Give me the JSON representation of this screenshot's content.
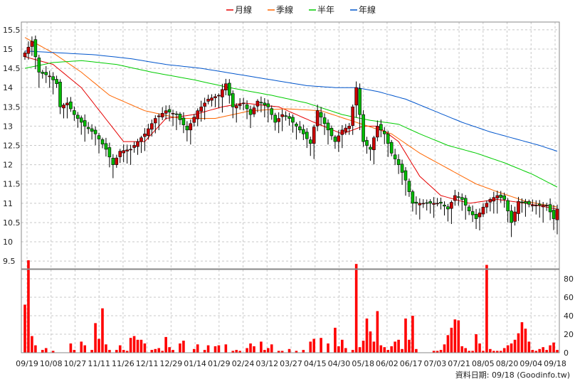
{
  "chart_data": {
    "type": "candlestick",
    "legend": [
      {
        "name": "月線",
        "color": "#e60000"
      },
      {
        "name": "季線",
        "color": "#ff6600"
      },
      {
        "name": "半年",
        "color": "#00cc00"
      },
      {
        "name": "年線",
        "color": "#0055cc"
      }
    ],
    "price_axis": {
      "ticks": [
        "15.5",
        "15",
        "14.5",
        "14",
        "13.5",
        "13",
        "12.5",
        "12",
        "11.5",
        "11",
        "10.5",
        "10",
        "9.5"
      ],
      "ylim": [
        9.3,
        15.7
      ]
    },
    "volume_axis": {
      "ticks": [
        "0",
        "20",
        "40",
        "60",
        "80"
      ],
      "ylim": [
        0,
        90
      ]
    },
    "x_labels": [
      "09/19",
      "10/08",
      "10/27",
      "11/11",
      "11/26",
      "12/11",
      "12/29",
      "01/14",
      "01/29",
      "02/24",
      "03/12",
      "03/27",
      "04/15",
      "04/30",
      "05/18",
      "06/02",
      "06/17",
      "07/03",
      "07/21",
      "08/05",
      "08/20",
      "09/04",
      "09/18"
    ],
    "colors": {
      "up": "#cc0000",
      "down": "#00bb00",
      "volume": "#ff0000",
      "grid": "#c8c8c8"
    },
    "anchors": {
      "close": [
        [
          0,
          14.9
        ],
        [
          2,
          15.2
        ],
        [
          4,
          14.4
        ],
        [
          7,
          14.3
        ],
        [
          9,
          14.1
        ],
        [
          10,
          13.5
        ],
        [
          12,
          13.6
        ],
        [
          14,
          13.3
        ],
        [
          17,
          13.0
        ],
        [
          20,
          12.8
        ],
        [
          23,
          12.4
        ],
        [
          25,
          12.0
        ],
        [
          27,
          12.35
        ],
        [
          30,
          12.4
        ],
        [
          34,
          12.8
        ],
        [
          37,
          13.2
        ],
        [
          40,
          13.4
        ],
        [
          43,
          13.3
        ],
        [
          46,
          12.9
        ],
        [
          49,
          13.4
        ],
        [
          52,
          13.7
        ],
        [
          55,
          13.8
        ],
        [
          57,
          14.1
        ],
        [
          59,
          13.5
        ],
        [
          62,
          13.6
        ],
        [
          64,
          13.3
        ],
        [
          66,
          13.65
        ],
        [
          69,
          13.5
        ],
        [
          71,
          13.1
        ],
        [
          73,
          13.3
        ],
        [
          75,
          13.2
        ],
        [
          77,
          13.0
        ],
        [
          79,
          12.8
        ],
        [
          81,
          12.55
        ],
        [
          83,
          13.4
        ],
        [
          86,
          12.9
        ],
        [
          88,
          12.6
        ],
        [
          90,
          12.9
        ],
        [
          92,
          13.0
        ],
        [
          94,
          14.0
        ],
        [
          96,
          12.6
        ],
        [
          98,
          12.4
        ],
        [
          100,
          13.0
        ],
        [
          102,
          12.8
        ],
        [
          104,
          12.3
        ],
        [
          106,
          12.0
        ],
        [
          108,
          11.6
        ],
        [
          110,
          11.0
        ],
        [
          112,
          11.0
        ],
        [
          114,
          11.0
        ],
        [
          116,
          11.0
        ],
        [
          118,
          11.0
        ],
        [
          120,
          10.85
        ],
        [
          122,
          11.2
        ],
        [
          124,
          11.1
        ],
        [
          126,
          10.8
        ],
        [
          128,
          10.6
        ],
        [
          130,
          10.9
        ],
        [
          132,
          11.1
        ],
        [
          134,
          11.2
        ],
        [
          136,
          11.1
        ],
        [
          138,
          10.5
        ],
        [
          140,
          11.05
        ],
        [
          142,
          11.0
        ],
        [
          144,
          10.95
        ],
        [
          146,
          10.95
        ],
        [
          148,
          10.95
        ],
        [
          150,
          10.6
        ],
        [
          151,
          10.85
        ]
      ],
      "ma_month": [
        [
          0,
          14.8
        ],
        [
          8,
          14.6
        ],
        [
          16,
          14.0
        ],
        [
          22,
          13.3
        ],
        [
          28,
          12.6
        ],
        [
          34,
          12.6
        ],
        [
          40,
          13.2
        ],
        [
          48,
          13.3
        ],
        [
          56,
          13.5
        ],
        [
          62,
          13.6
        ],
        [
          72,
          13.5
        ],
        [
          82,
          13.1
        ],
        [
          90,
          12.8
        ],
        [
          96,
          13.0
        ],
        [
          100,
          13.0
        ],
        [
          106,
          12.6
        ],
        [
          112,
          11.7
        ],
        [
          118,
          11.2
        ],
        [
          126,
          11.0
        ],
        [
          134,
          11.1
        ],
        [
          142,
          11.0
        ],
        [
          151,
          10.85
        ]
      ],
      "ma_quarter": [
        [
          0,
          15.3
        ],
        [
          8,
          14.9
        ],
        [
          16,
          14.4
        ],
        [
          24,
          13.8
        ],
        [
          34,
          13.4
        ],
        [
          44,
          13.2
        ],
        [
          54,
          13.2
        ],
        [
          64,
          13.4
        ],
        [
          74,
          13.45
        ],
        [
          84,
          13.4
        ],
        [
          94,
          13.1
        ],
        [
          104,
          12.8
        ],
        [
          112,
          12.3
        ],
        [
          120,
          11.9
        ],
        [
          128,
          11.5
        ],
        [
          134,
          11.3
        ],
        [
          142,
          11.05
        ],
        [
          151,
          10.9
        ]
      ],
      "ma_half": [
        [
          0,
          14.5
        ],
        [
          8,
          14.65
        ],
        [
          16,
          14.7
        ],
        [
          26,
          14.6
        ],
        [
          36,
          14.4
        ],
        [
          48,
          14.2
        ],
        [
          58,
          14.0
        ],
        [
          70,
          13.8
        ],
        [
          80,
          13.6
        ],
        [
          90,
          13.3
        ],
        [
          98,
          13.15
        ],
        [
          106,
          13.05
        ],
        [
          112,
          12.8
        ],
        [
          120,
          12.5
        ],
        [
          128,
          12.3
        ],
        [
          136,
          12.05
        ],
        [
          144,
          11.75
        ],
        [
          151,
          11.42
        ]
      ],
      "ma_year": [
        [
          0,
          14.95
        ],
        [
          10,
          14.9
        ],
        [
          20,
          14.85
        ],
        [
          30,
          14.75
        ],
        [
          40,
          14.6
        ],
        [
          50,
          14.5
        ],
        [
          60,
          14.35
        ],
        [
          70,
          14.2
        ],
        [
          80,
          14.05
        ],
        [
          88,
          14.0
        ],
        [
          94,
          14.0
        ],
        [
          100,
          13.9
        ],
        [
          108,
          13.7
        ],
        [
          116,
          13.4
        ],
        [
          124,
          13.1
        ],
        [
          132,
          12.85
        ],
        [
          140,
          12.65
        ],
        [
          146,
          12.5
        ],
        [
          151,
          12.35
        ]
      ],
      "volume": [
        [
          0,
          52
        ],
        [
          1,
          100
        ],
        [
          2,
          18
        ],
        [
          3,
          8
        ],
        [
          5,
          3
        ],
        [
          6,
          5
        ],
        [
          8,
          2
        ],
        [
          13,
          10
        ],
        [
          14,
          3
        ],
        [
          16,
          12
        ],
        [
          17,
          8
        ],
        [
          19,
          3
        ],
        [
          20,
          32
        ],
        [
          21,
          15
        ],
        [
          22,
          48
        ],
        [
          23,
          9
        ],
        [
          24,
          3
        ],
        [
          26,
          3
        ],
        [
          27,
          8
        ],
        [
          28,
          3
        ],
        [
          29,
          2
        ],
        [
          30,
          16
        ],
        [
          31,
          18
        ],
        [
          32,
          14
        ],
        [
          33,
          14
        ],
        [
          34,
          10
        ],
        [
          36,
          3
        ],
        [
          37,
          4
        ],
        [
          38,
          5
        ],
        [
          39,
          2
        ],
        [
          40,
          17
        ],
        [
          41,
          6
        ],
        [
          42,
          3
        ],
        [
          44,
          10
        ],
        [
          45,
          13
        ],
        [
          48,
          4
        ],
        [
          49,
          9
        ],
        [
          51,
          3
        ],
        [
          52,
          8
        ],
        [
          54,
          7
        ],
        [
          55,
          8
        ],
        [
          57,
          9
        ],
        [
          59,
          2
        ],
        [
          60,
          3
        ],
        [
          61,
          2
        ],
        [
          63,
          5
        ],
        [
          64,
          10
        ],
        [
          65,
          7
        ],
        [
          67,
          12
        ],
        [
          68,
          3
        ],
        [
          69,
          5
        ],
        [
          70,
          9
        ],
        [
          72,
          2
        ],
        [
          73,
          2
        ],
        [
          75,
          4
        ],
        [
          77,
          2
        ],
        [
          79,
          3
        ],
        [
          81,
          12
        ],
        [
          82,
          15
        ],
        [
          84,
          16
        ],
        [
          86,
          10
        ],
        [
          88,
          27
        ],
        [
          89,
          7
        ],
        [
          90,
          14
        ],
        [
          91,
          5
        ],
        [
          93,
          3
        ],
        [
          94,
          96
        ],
        [
          95,
          6
        ],
        [
          96,
          13
        ],
        [
          97,
          37
        ],
        [
          98,
          23
        ],
        [
          99,
          12
        ],
        [
          100,
          45
        ],
        [
          101,
          8
        ],
        [
          102,
          6
        ],
        [
          103,
          3
        ],
        [
          104,
          7
        ],
        [
          105,
          12
        ],
        [
          106,
          14
        ],
        [
          107,
          4
        ],
        [
          108,
          37
        ],
        [
          109,
          14
        ],
        [
          110,
          40
        ],
        [
          111,
          4
        ],
        [
          116,
          2
        ],
        [
          117,
          2
        ],
        [
          118,
          3
        ],
        [
          119,
          9
        ],
        [
          120,
          19
        ],
        [
          121,
          27
        ],
        [
          122,
          36
        ],
        [
          123,
          35
        ],
        [
          124,
          7
        ],
        [
          125,
          5
        ],
        [
          126,
          2
        ],
        [
          127,
          2
        ],
        [
          128,
          20
        ],
        [
          129,
          10
        ],
        [
          130,
          2
        ],
        [
          131,
          95
        ],
        [
          132,
          4
        ],
        [
          133,
          2
        ],
        [
          134,
          2
        ],
        [
          135,
          2
        ],
        [
          136,
          5
        ],
        [
          137,
          8
        ],
        [
          138,
          10
        ],
        [
          139,
          14
        ],
        [
          140,
          21
        ],
        [
          141,
          33
        ],
        [
          142,
          26
        ],
        [
          143,
          12
        ],
        [
          144,
          3
        ],
        [
          145,
          2
        ],
        [
          146,
          4
        ],
        [
          147,
          6
        ],
        [
          148,
          3
        ],
        [
          149,
          8
        ],
        [
          150,
          11
        ],
        [
          151,
          3
        ]
      ]
    }
  },
  "footer": {
    "text": "資料日期: 09/18  (Goodinfo.tw)"
  }
}
